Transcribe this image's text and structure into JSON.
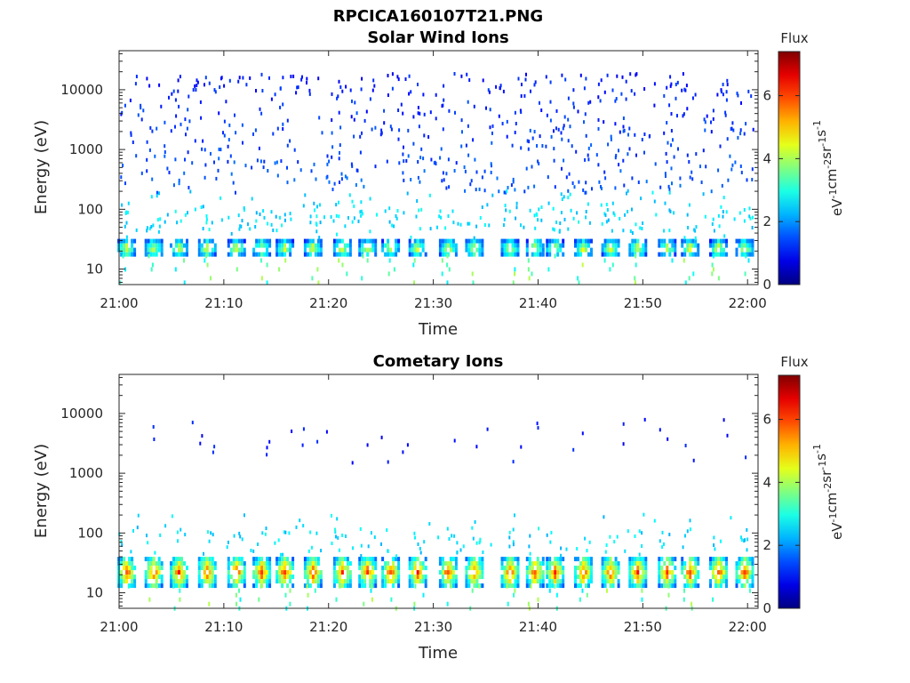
{
  "figure": {
    "title": "RPCICA160107T21.PNG"
  },
  "chart_data": [
    {
      "type": "heatmap",
      "title": "Solar Wind Ions",
      "xlabel": "Time",
      "ylabel": "Energy (eV)",
      "x_ticks": [
        "21:00",
        "21:10",
        "21:20",
        "21:30",
        "21:40",
        "21:50",
        "22:00"
      ],
      "x_range_minutes": [
        0,
        61
      ],
      "y_scale": "log",
      "y_ticks": [
        10,
        100,
        1000,
        10000
      ],
      "y_tick_labels": [
        "10",
        "100",
        "1000",
        "10000"
      ],
      "y_range": [
        5.5,
        45000
      ],
      "colorbar": {
        "title": "Flux",
        "label": "eV-1cm-2sr-1s-1",
        "ticks": [
          0,
          2,
          4,
          6
        ],
        "tick_labels": [
          "0",
          "2",
          "4",
          "6"
        ],
        "range": [
          0,
          7.4
        ],
        "colormap": "jet"
      },
      "pattern": {
        "band_energy": [
          18,
          32
        ],
        "band_level": 4.6,
        "pulse_times": [
          0.6,
          3.2,
          5.6,
          8.3,
          11.1,
          13.5,
          15.7,
          18.4,
          21.2,
          23.6,
          25.8,
          28.4,
          31.3,
          33.8,
          37.2,
          39.6,
          41.5,
          44.2,
          46.8,
          49.4,
          52.2,
          54.4,
          57.1,
          59.6
        ],
        "scatter_energy": [
          200,
          20000
        ],
        "scatter_level": 1.4
      }
    },
    {
      "type": "heatmap",
      "title": "Cometary Ions",
      "xlabel": "Time",
      "ylabel": "Energy (eV)",
      "x_ticks": [
        "21:00",
        "21:10",
        "21:20",
        "21:30",
        "21:40",
        "21:50",
        "22:00"
      ],
      "x_range_minutes": [
        0,
        61
      ],
      "y_scale": "log",
      "y_ticks": [
        10,
        100,
        1000,
        10000
      ],
      "y_tick_labels": [
        "10",
        "100",
        "1000",
        "10000"
      ],
      "y_range": [
        5.5,
        45000
      ],
      "colorbar": {
        "title": "Flux",
        "label": "eV-1cm-2sr-1s-1",
        "ticks": [
          0,
          2,
          4,
          6
        ],
        "tick_labels": [
          "0",
          "2",
          "4",
          "6"
        ],
        "range": [
          0,
          7.4
        ],
        "colormap": "jet"
      },
      "pattern": {
        "band_energy": [
          14,
          40
        ],
        "band_level": 6.2,
        "pulse_times": [
          0.6,
          3.2,
          5.6,
          8.3,
          11.1,
          13.5,
          15.7,
          18.4,
          21.2,
          23.6,
          25.8,
          28.4,
          31.3,
          33.8,
          37.2,
          39.6,
          41.5,
          44.2,
          46.8,
          49.4,
          52.2,
          54.4,
          57.1,
          59.6
        ],
        "scatter_energy": [
          1500,
          9000
        ],
        "scatter_level": 1.2
      }
    }
  ]
}
